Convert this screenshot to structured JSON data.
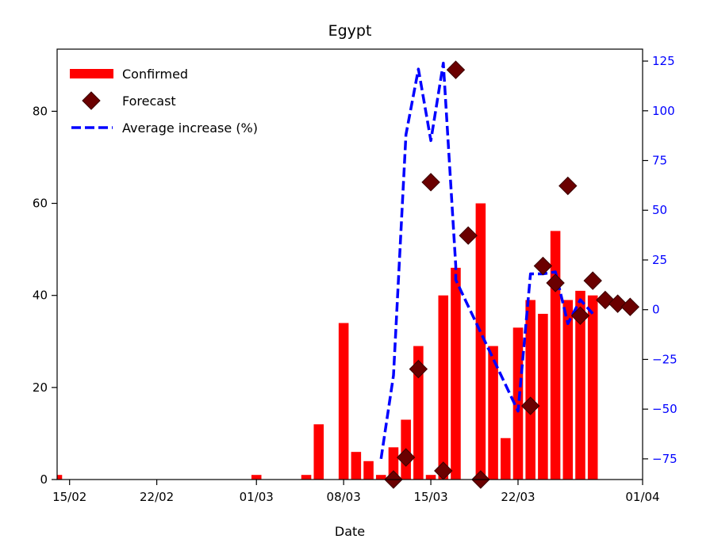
{
  "chart_data": {
    "type": "bar",
    "title": "Egypt",
    "xlabel": "Date",
    "ylabel": "",
    "ylabel_right": "",
    "x_tick_labels": [
      "15/02",
      "22/02",
      "01/03",
      "08/03",
      "15/03",
      "22/03",
      "01/04"
    ],
    "x_tick_dates": [
      "2020-02-15",
      "2020-02-22",
      "2020-03-01",
      "2020-03-08",
      "2020-03-15",
      "2020-03-22",
      "2020-04-01"
    ],
    "xlim": [
      "2020-02-14",
      "2020-04-01"
    ],
    "ylim": [
      0,
      93.5
    ],
    "ylim_right": [
      -85.4,
      131
    ],
    "y_ticks": [
      0,
      20,
      40,
      60,
      80
    ],
    "y_ticks_right": [
      -75,
      -50,
      -25,
      0,
      25,
      50,
      75,
      100,
      125
    ],
    "legend_position": "top-left",
    "grid": false,
    "colors": {
      "confirmed": "#ff0000",
      "forecast": "#6b0000",
      "average": "#0000ff",
      "right_axis": "#0000ff"
    },
    "series": [
      {
        "name": "Confirmed",
        "type": "bar",
        "axis": "left",
        "x": [
          "2020-02-14",
          "2020-03-01",
          "2020-03-05",
          "2020-03-06",
          "2020-03-08",
          "2020-03-09",
          "2020-03-10",
          "2020-03-11",
          "2020-03-12",
          "2020-03-13",
          "2020-03-14",
          "2020-03-15",
          "2020-03-16",
          "2020-03-17",
          "2020-03-19",
          "2020-03-20",
          "2020-03-21",
          "2020-03-22",
          "2020-03-23",
          "2020-03-24",
          "2020-03-25",
          "2020-03-26",
          "2020-03-27",
          "2020-03-28"
        ],
        "values": [
          1,
          1,
          1,
          12,
          34,
          6,
          4,
          1,
          7,
          13,
          29,
          1,
          40,
          46,
          60,
          29,
          9,
          33,
          39,
          36,
          54,
          39,
          41,
          40
        ]
      },
      {
        "name": "Forecast",
        "type": "scatter",
        "axis": "left",
        "x": [
          "2020-03-12",
          "2020-03-13",
          "2020-03-14",
          "2020-03-15",
          "2020-03-16",
          "2020-03-17",
          "2020-03-18",
          "2020-03-19",
          "2020-03-23",
          "2020-03-24",
          "2020-03-25",
          "2020-03-26",
          "2020-03-27",
          "2020-03-28",
          "2020-03-29",
          "2020-03-30",
          "2020-03-31"
        ],
        "values": [
          0,
          4.8,
          24,
          64.6,
          1.9,
          89,
          53,
          0,
          16,
          46.4,
          42.7,
          63.8,
          35.6,
          43.2,
          39,
          38.2,
          37.5
        ]
      },
      {
        "name": "Average increase (%)",
        "type": "line",
        "axis": "right",
        "x": [
          "2020-03-11",
          "2020-03-12",
          "2020-03-13",
          "2020-03-14",
          "2020-03-15",
          "2020-03-16",
          "2020-03-17",
          "2020-03-17",
          "2020-03-22",
          "2020-03-23",
          "2020-03-24",
          "2020-03-25",
          "2020-03-26",
          "2020-03-27",
          "2020-03-28"
        ],
        "values": [
          -75,
          -33,
          88,
          121,
          85,
          124,
          22,
          15,
          -51,
          18,
          18,
          19,
          -7,
          5,
          -2
        ]
      }
    ]
  }
}
